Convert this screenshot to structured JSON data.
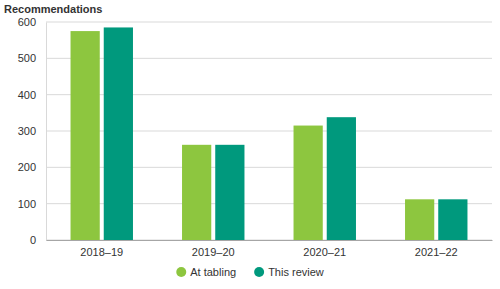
{
  "chart_data": {
    "type": "bar",
    "y_label": "Recommendations",
    "categories": [
      "2018–19",
      "2019–20",
      "2020–21",
      "2021–22"
    ],
    "series": [
      {
        "name": "At tabling",
        "color": "#8DC63F",
        "values": [
          575,
          262,
          315,
          112
        ]
      },
      {
        "name": "This review",
        "color": "#00997D",
        "values": [
          585,
          262,
          338,
          112
        ]
      }
    ],
    "ylim": [
      0,
      600
    ],
    "yticks": [
      0,
      100,
      200,
      300,
      400,
      500,
      600
    ],
    "grid": true,
    "legend": "bottom"
  }
}
